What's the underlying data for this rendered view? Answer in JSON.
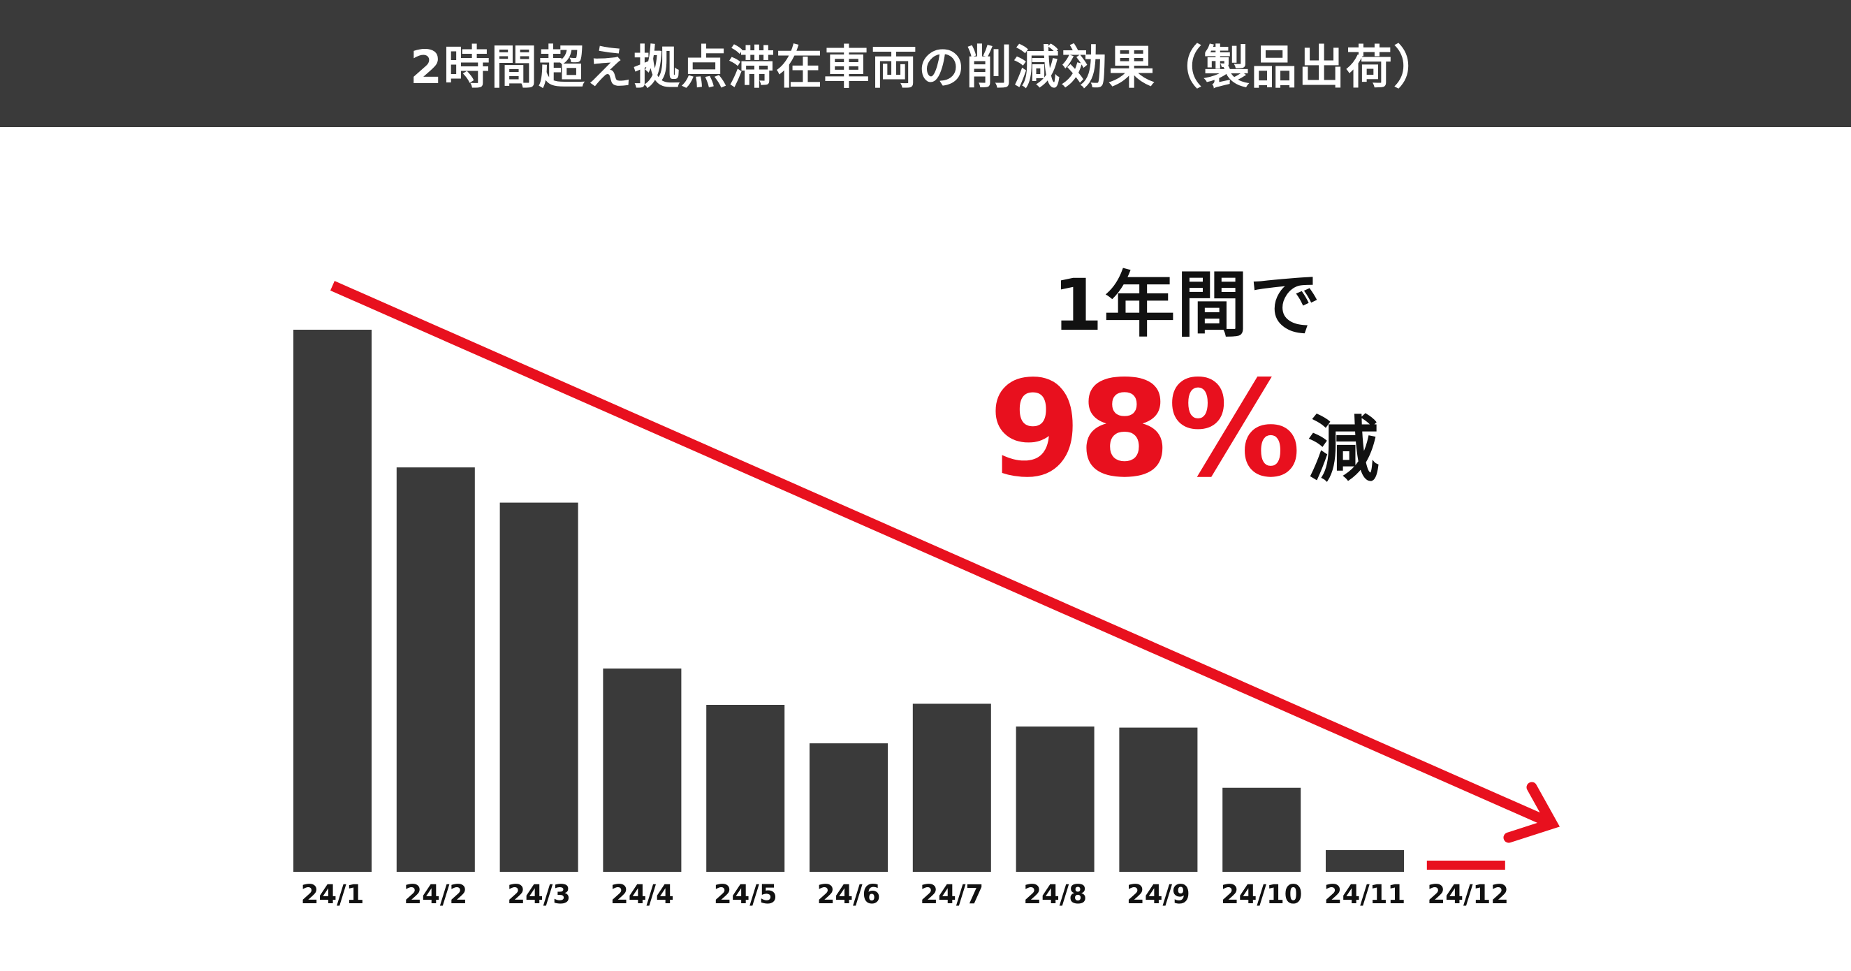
{
  "header": {
    "title": "2時間超え拠点滞在車両の削減効果（製品出荷）"
  },
  "callout": {
    "line1": "1年間で",
    "value": "98%",
    "suffix": "減"
  },
  "colors": {
    "title_bg": "#3a3a3a",
    "bar": "#3a3a3a",
    "accent": "#e8101e",
    "text": "#111111"
  },
  "chart_data": {
    "type": "bar",
    "title": "2時間超え拠点滞在車両の削減効果（製品出荷）",
    "categories": [
      "24/1",
      "24/2",
      "24/3",
      "24/4",
      "24/5",
      "24/6",
      "24/7",
      "24/8",
      "24/9",
      "24/10",
      "24/11",
      "24/12"
    ],
    "values": [
      100,
      74.6,
      68.1,
      37.5,
      30.8,
      23.7,
      31.0,
      26.8,
      26.6,
      15.5,
      4.0,
      2.0
    ],
    "highlight_index": 11,
    "xlabel": "",
    "ylabel": "",
    "ylim": [
      0,
      100
    ],
    "grid": false,
    "trend_arrow": "down"
  }
}
